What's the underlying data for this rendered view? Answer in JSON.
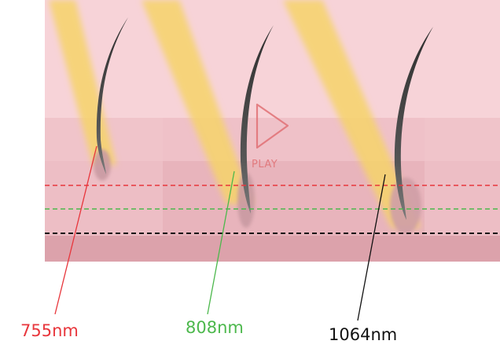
{
  "play_control": {
    "label": "PLAY"
  },
  "wavelengths": [
    {
      "label": "755nm",
      "color": "#e8363c"
    },
    {
      "label": "808nm",
      "color": "#4cb84c"
    },
    {
      "label": "1064nm",
      "color": "#111111"
    }
  ],
  "colors": {
    "skin_top": "#f7d3d8",
    "skin_mid": "#eebcc3",
    "skin_deep": "#e6b0b8",
    "skin_bottom": "#dca2ab",
    "laser_beam": "#f6d36a",
    "hair": "#3a3a3a",
    "play_outline": "#e07074"
  }
}
